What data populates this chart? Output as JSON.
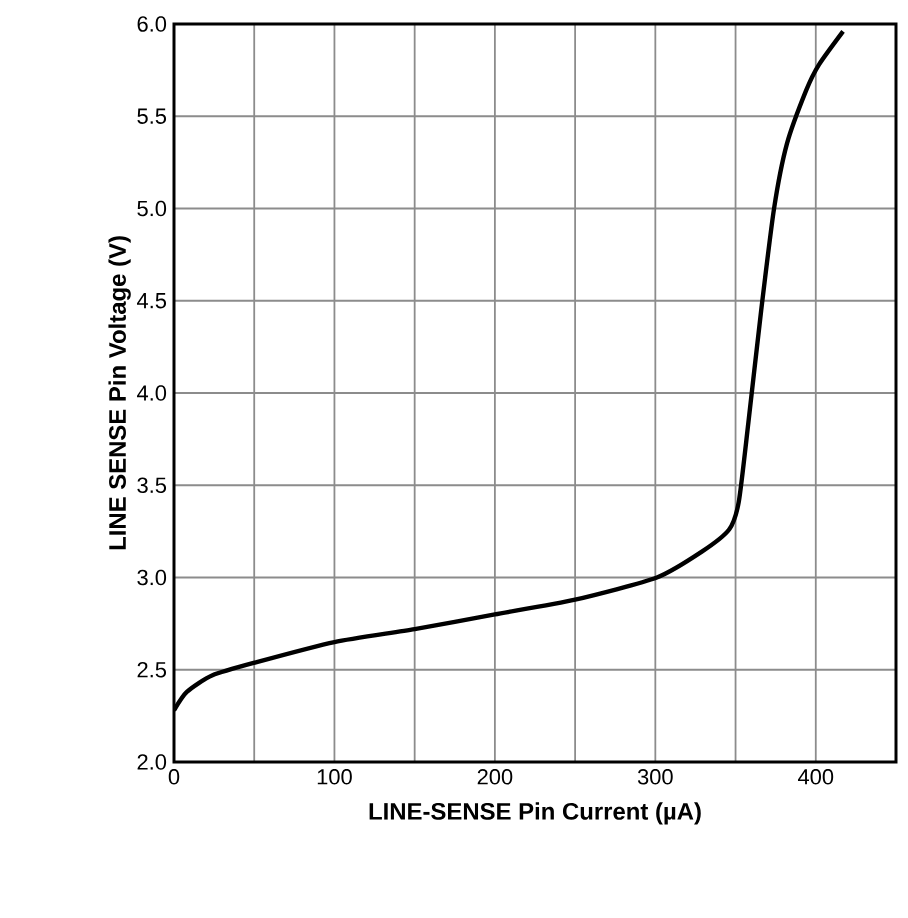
{
  "chart_data": {
    "type": "line",
    "xlabel": "LINE-SENSE Pin Current (µA)",
    "ylabel": "LINE SENSE Pin Voltage (V)",
    "x": [
      0,
      8,
      24,
      51,
      100,
      150,
      200,
      250,
      301,
      329,
      346,
      352,
      358,
      366,
      374,
      382,
      394,
      402,
      417
    ],
    "series": [
      {
        "color": "#000000",
        "values": [
          2.28,
          2.38,
          2.47,
          2.54,
          2.65,
          2.72,
          2.8,
          2.88,
          3.0,
          3.14,
          3.26,
          3.41,
          3.84,
          4.45,
          5.0,
          5.35,
          5.64,
          5.78,
          5.96
        ]
      }
    ],
    "xlim": [
      0,
      450
    ],
    "ylim": [
      2.0,
      6.0
    ],
    "xticks": [
      0,
      {
        "value": 50,
        "label": null
      },
      100,
      {
        "value": 150,
        "label": null
      },
      200,
      {
        "value": 250,
        "label": null
      },
      300,
      {
        "value": 350,
        "label": null
      },
      400
    ],
    "yticks": [
      {
        "value": 2,
        "label": "2.0"
      },
      2.5,
      {
        "value": 3,
        "label": "3.0"
      },
      3.5,
      {
        "value": 4,
        "label": "4.0"
      },
      4.5,
      {
        "value": 5,
        "label": "5.0"
      },
      5.5,
      {
        "value": 6,
        "label": "6.0"
      }
    ],
    "grid": true,
    "marker": "none",
    "line_style": "solid"
  }
}
